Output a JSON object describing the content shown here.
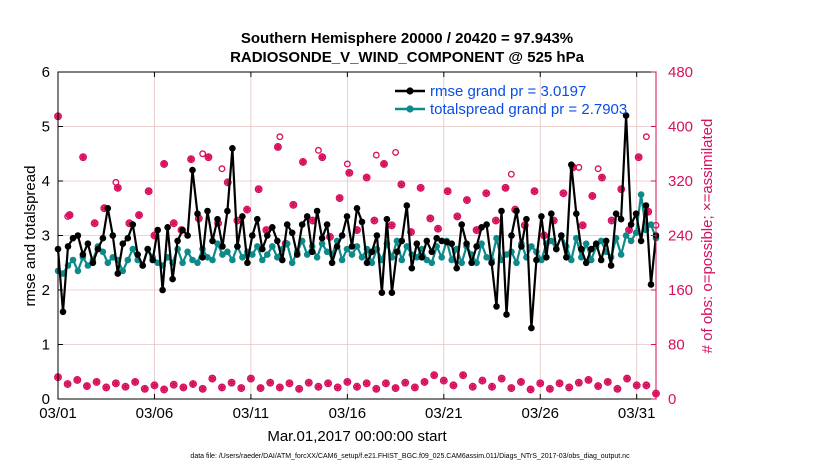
{
  "chart_data": {
    "type": "line",
    "title_line1": "Southern Hemisphere 20000 / 20420 = 97.943%",
    "title_line2": "RADIOSONDE_V_WIND_COMPONENT @ 525 hPa",
    "xlabel": "Mar.01,2017 00:00:00 start",
    "ylabel_left": "rmse and totalspread",
    "ylabel_right": "# of obs: o=possible; ×=assimilated",
    "footer": "data file: /Users/raeder/DAI/ATM_forcXX/CAM6_setup/f.e21.FHIST_BGC.f09_025.CAM6assim.011/Diags_NTrS_2017-03/obs_diag_output.nc",
    "xlim": [
      0,
      31
    ],
    "ylim_left": [
      0,
      6
    ],
    "ylim_right": [
      0,
      480
    ],
    "x_ticks": [
      0,
      5,
      10,
      15,
      20,
      25,
      30
    ],
    "x_tick_labels": [
      "03/01",
      "03/06",
      "03/11",
      "03/16",
      "03/21",
      "03/26",
      "03/31"
    ],
    "y_ticks_left": [
      "0",
      "1",
      "2",
      "3",
      "4",
      "5",
      "6"
    ],
    "y_ticks_right": [
      "0",
      "80",
      "160",
      "240",
      "320",
      "400",
      "480"
    ],
    "colors": {
      "rmse": "#000000",
      "spread": "#0f8a8a",
      "obs": "#d6115d",
      "legend_text": "#0a4de8",
      "grid": "#e6c3c3"
    },
    "series": [
      {
        "name": "rmse grand pr = 3.0197",
        "axis": "left",
        "values": [
          2.75,
          1.6,
          2.8,
          2.95,
          3.0,
          2.65,
          2.85,
          2.5,
          2.75,
          2.95,
          3.5,
          3.0,
          2.3,
          2.85,
          2.95,
          3.2,
          2.65,
          2.45,
          2.75,
          2.55,
          3.1,
          2.0,
          3.15,
          2.2,
          2.9,
          3.1,
          3.0,
          4.2,
          3.4,
          2.6,
          3.45,
          2.9,
          3.3,
          2.8,
          3.45,
          4.6,
          2.8,
          3.35,
          2.5,
          3.0,
          3.3,
          2.75,
          3.0,
          3.15,
          2.9,
          2.55,
          3.2,
          3.05,
          2.65,
          3.2,
          3.35,
          2.7,
          3.45,
          2.95,
          3.2,
          2.5,
          2.8,
          3.0,
          3.35,
          2.8,
          3.5,
          3.25,
          2.5,
          2.7,
          3.0,
          1.95,
          3.3,
          1.95,
          2.7,
          2.9,
          3.55,
          2.4,
          2.85,
          2.6,
          2.9,
          2.7,
          2.95,
          2.9,
          2.88,
          2.85,
          2.4,
          3.2,
          2.85,
          2.5,
          2.8,
          3.15,
          3.2,
          2.5,
          1.7,
          3.45,
          1.55,
          3.0,
          3.45,
          2.8,
          3.3,
          1.3,
          2.55,
          3.35,
          2.6,
          3.4,
          2.75,
          3.0,
          2.6,
          4.3,
          3.4,
          2.75,
          2.5,
          2.75,
          2.85,
          2.55,
          2.9,
          2.45,
          3.4,
          3.3,
          5.2,
          3.2,
          3.4,
          2.9,
          3.55,
          2.1,
          3.0
        ]
      },
      {
        "name": "totalspread grand pr = 2.7903",
        "axis": "left",
        "values": [
          2.35,
          2.3,
          2.45,
          2.55,
          2.35,
          2.6,
          2.45,
          2.55,
          2.8,
          2.7,
          2.5,
          2.6,
          2.55,
          2.35,
          2.55,
          2.75,
          2.55,
          2.45,
          2.75,
          2.6,
          2.5,
          2.45,
          2.6,
          2.5,
          2.75,
          2.5,
          2.7,
          2.55,
          2.5,
          2.75,
          2.6,
          2.55,
          2.85,
          2.65,
          2.7,
          2.55,
          2.8,
          2.6,
          2.7,
          2.65,
          2.8,
          2.55,
          2.65,
          2.8,
          2.6,
          2.75,
          2.85,
          2.5,
          2.7,
          2.9,
          2.65,
          2.8,
          2.6,
          2.85,
          2.7,
          2.65,
          2.9,
          2.55,
          2.75,
          2.65,
          2.8,
          2.6,
          2.75,
          2.5,
          2.75,
          2.55,
          2.85,
          2.6,
          2.9,
          2.55,
          2.8,
          2.65,
          2.6,
          2.75,
          2.55,
          2.5,
          2.8,
          2.6,
          2.9,
          2.55,
          2.75,
          2.5,
          2.8,
          2.65,
          2.5,
          2.85,
          2.6,
          2.55,
          2.95,
          2.55,
          2.65,
          2.7,
          2.5,
          2.85,
          2.6,
          2.8,
          2.7,
          2.55,
          2.85,
          2.9,
          2.75,
          3.0,
          2.8,
          2.55,
          2.95,
          2.6,
          2.85,
          2.55,
          2.8,
          2.9,
          2.7,
          2.6,
          2.95,
          2.65,
          3.0,
          2.9,
          3.05,
          3.75,
          3.1,
          3.2,
          2.95
        ]
      }
    ],
    "obs_assimilated": [
      {
        "x": 0.0,
        "v": 32
      },
      {
        "x": 0.5,
        "v": 22
      },
      {
        "x": 1.0,
        "v": 28
      },
      {
        "x": 1.5,
        "v": 19
      },
      {
        "x": 2.0,
        "v": 25
      },
      {
        "x": 2.5,
        "v": 17
      },
      {
        "x": 3.0,
        "v": 23
      },
      {
        "x": 3.5,
        "v": 18
      },
      {
        "x": 4.0,
        "v": 25
      },
      {
        "x": 4.5,
        "v": 15
      },
      {
        "x": 5.0,
        "v": 20
      },
      {
        "x": 5.5,
        "v": 14
      },
      {
        "x": 6.0,
        "v": 21
      },
      {
        "x": 6.5,
        "v": 17
      },
      {
        "x": 7.0,
        "v": 22
      },
      {
        "x": 7.5,
        "v": 15
      },
      {
        "x": 8.0,
        "v": 30
      },
      {
        "x": 8.5,
        "v": 17
      },
      {
        "x": 9.0,
        "v": 24
      },
      {
        "x": 9.5,
        "v": 16
      },
      {
        "x": 10.0,
        "v": 30
      },
      {
        "x": 10.5,
        "v": 16
      },
      {
        "x": 11.0,
        "v": 24
      },
      {
        "x": 11.5,
        "v": 17
      },
      {
        "x": 12.0,
        "v": 23
      },
      {
        "x": 12.5,
        "v": 15
      },
      {
        "x": 13.0,
        "v": 24
      },
      {
        "x": 13.5,
        "v": 18
      },
      {
        "x": 14.0,
        "v": 23
      },
      {
        "x": 14.5,
        "v": 17
      },
      {
        "x": 15.0,
        "v": 25
      },
      {
        "x": 15.5,
        "v": 18
      },
      {
        "x": 16.0,
        "v": 23
      },
      {
        "x": 16.5,
        "v": 15
      },
      {
        "x": 17.0,
        "v": 23
      },
      {
        "x": 17.5,
        "v": 16
      },
      {
        "x": 18.0,
        "v": 24
      },
      {
        "x": 18.5,
        "v": 17
      },
      {
        "x": 19.0,
        "v": 25
      },
      {
        "x": 19.5,
        "v": 35
      },
      {
        "x": 20.0,
        "v": 27
      },
      {
        "x": 20.5,
        "v": 20
      },
      {
        "x": 21.0,
        "v": 35
      },
      {
        "x": 21.5,
        "v": 18
      },
      {
        "x": 22.0,
        "v": 27
      },
      {
        "x": 22.5,
        "v": 18
      },
      {
        "x": 23.0,
        "v": 30
      },
      {
        "x": 23.5,
        "v": 16
      },
      {
        "x": 24.0,
        "v": 25
      },
      {
        "x": 24.5,
        "v": 14
      },
      {
        "x": 25.0,
        "v": 23
      },
      {
        "x": 25.5,
        "v": 15
      },
      {
        "x": 26.0,
        "v": 23
      },
      {
        "x": 26.5,
        "v": 17
      },
      {
        "x": 27.0,
        "v": 24
      },
      {
        "x": 27.5,
        "v": 28
      },
      {
        "x": 28.0,
        "v": 19
      },
      {
        "x": 28.5,
        "v": 25
      },
      {
        "x": 29.0,
        "v": 15
      },
      {
        "x": 29.5,
        "v": 30
      },
      {
        "x": 30.0,
        "v": 20
      },
      {
        "x": 30.5,
        "v": 20
      },
      {
        "x": 31.0,
        "v": 8
      }
    ],
    "obs_possible_extra": [
      {
        "x": 0.5,
        "v": 268
      },
      {
        "x": 3.0,
        "v": 318
      },
      {
        "x": 7.5,
        "v": 360
      },
      {
        "x": 8.5,
        "v": 338
      },
      {
        "x": 11.5,
        "v": 385
      },
      {
        "x": 13.5,
        "v": 365
      },
      {
        "x": 15.0,
        "v": 345
      },
      {
        "x": 16.5,
        "v": 358
      },
      {
        "x": 17.5,
        "v": 362
      },
      {
        "x": 23.5,
        "v": 330
      },
      {
        "x": 27.0,
        "v": 340
      },
      {
        "x": 28.0,
        "v": 338
      },
      {
        "x": 30.5,
        "v": 385
      },
      {
        "x": 31.0,
        "v": 255
      }
    ],
    "obs_upper_assimilated": [
      {
        "x": 0.0,
        "v": 415
      },
      {
        "x": 0.6,
        "v": 270
      },
      {
        "x": 1.3,
        "v": 355
      },
      {
        "x": 1.9,
        "v": 258
      },
      {
        "x": 2.4,
        "v": 280
      },
      {
        "x": 3.1,
        "v": 310
      },
      {
        "x": 3.7,
        "v": 258
      },
      {
        "x": 4.2,
        "v": 270
      },
      {
        "x": 4.7,
        "v": 305
      },
      {
        "x": 5.0,
        "v": 240
      },
      {
        "x": 5.5,
        "v": 345
      },
      {
        "x": 6.0,
        "v": 258
      },
      {
        "x": 6.4,
        "v": 248
      },
      {
        "x": 6.9,
        "v": 352
      },
      {
        "x": 7.3,
        "v": 265
      },
      {
        "x": 7.8,
        "v": 355
      },
      {
        "x": 8.3,
        "v": 258
      },
      {
        "x": 8.8,
        "v": 318
      },
      {
        "x": 9.3,
        "v": 262
      },
      {
        "x": 9.8,
        "v": 278
      },
      {
        "x": 10.4,
        "v": 308
      },
      {
        "x": 10.8,
        "v": 248
      },
      {
        "x": 11.4,
        "v": 370
      },
      {
        "x": 11.8,
        "v": 228
      },
      {
        "x": 12.2,
        "v": 285
      },
      {
        "x": 12.7,
        "v": 348
      },
      {
        "x": 13.2,
        "v": 262
      },
      {
        "x": 13.7,
        "v": 355
      },
      {
        "x": 14.1,
        "v": 238
      },
      {
        "x": 14.6,
        "v": 295
      },
      {
        "x": 15.1,
        "v": 332
      },
      {
        "x": 15.5,
        "v": 248
      },
      {
        "x": 16.0,
        "v": 325
      },
      {
        "x": 16.4,
        "v": 262
      },
      {
        "x": 16.9,
        "v": 345
      },
      {
        "x": 17.3,
        "v": 255
      },
      {
        "x": 17.8,
        "v": 315
      },
      {
        "x": 18.3,
        "v": 245
      },
      {
        "x": 18.8,
        "v": 310
      },
      {
        "x": 19.3,
        "v": 265
      },
      {
        "x": 19.7,
        "v": 250
      },
      {
        "x": 20.2,
        "v": 305
      },
      {
        "x": 20.7,
        "v": 268
      },
      {
        "x": 21.2,
        "v": 292
      },
      {
        "x": 21.7,
        "v": 248
      },
      {
        "x": 22.2,
        "v": 302
      },
      {
        "x": 22.7,
        "v": 262
      },
      {
        "x": 23.2,
        "v": 310
      },
      {
        "x": 23.7,
        "v": 278
      },
      {
        "x": 24.2,
        "v": 255
      },
      {
        "x": 24.7,
        "v": 305
      },
      {
        "x": 25.2,
        "v": 240
      },
      {
        "x": 25.7,
        "v": 262
      },
      {
        "x": 26.2,
        "v": 302
      },
      {
        "x": 26.7,
        "v": 340
      },
      {
        "x": 27.2,
        "v": 255
      },
      {
        "x": 27.7,
        "v": 298
      },
      {
        "x": 28.2,
        "v": 325
      },
      {
        "x": 28.7,
        "v": 262
      },
      {
        "x": 29.2,
        "v": 308
      },
      {
        "x": 29.6,
        "v": 248
      },
      {
        "x": 30.1,
        "v": 355
      },
      {
        "x": 30.6,
        "v": 275
      }
    ],
    "legend_position": "top-right"
  }
}
